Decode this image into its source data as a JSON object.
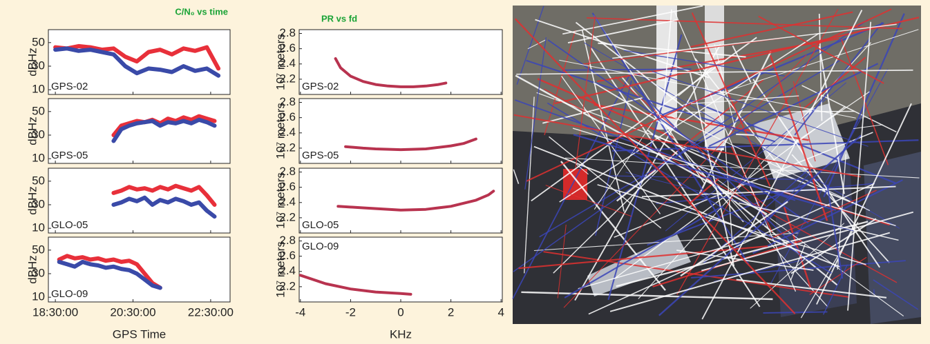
{
  "chart_data": [
    {
      "type": "line",
      "title": "C/N₀ vs time",
      "xlabel": "GPS Time",
      "ylabel": "dBHz",
      "xlim": [
        18.32,
        23.0
      ],
      "xticks": [
        {
          "value": 18.5,
          "label": "18:30:00"
        },
        {
          "value": 20.5,
          "label": "20:30:00"
        },
        {
          "value": 22.5,
          "label": "22:30:00"
        }
      ],
      "ylim": [
        6,
        61
      ],
      "yticks": [
        10,
        30,
        50
      ],
      "panels": [
        {
          "label": "GPS-02",
          "series": [
            {
              "color": "#e8303a",
              "x": [
                18.5,
                18.8,
                19.1,
                19.4,
                19.7,
                20.0,
                20.3,
                20.6,
                20.9,
                21.2,
                21.5,
                21.8,
                22.1,
                22.4,
                22.7
              ],
              "values": [
                46,
                45,
                47,
                46,
                44,
                45,
                38,
                34,
                42,
                44,
                40,
                45,
                43,
                46,
                28
              ]
            },
            {
              "color": "#3a4aa8",
              "x": [
                18.5,
                18.8,
                19.1,
                19.4,
                19.7,
                20.0,
                20.3,
                20.6,
                20.9,
                21.2,
                21.5,
                21.8,
                22.1,
                22.4,
                22.7
              ],
              "values": [
                44,
                45,
                43,
                44,
                42,
                40,
                30,
                24,
                28,
                27,
                25,
                30,
                26,
                28,
                22
              ]
            }
          ]
        },
        {
          "label": "GPS-05",
          "series": [
            {
              "color": "#e8303a",
              "x": [
                20.0,
                20.2,
                20.4,
                20.6,
                20.8,
                21.0,
                21.2,
                21.4,
                21.6,
                21.8,
                22.0,
                22.2,
                22.4,
                22.6
              ],
              "values": [
                30,
                38,
                40,
                42,
                41,
                43,
                40,
                44,
                42,
                45,
                43,
                46,
                44,
                42
              ]
            },
            {
              "color": "#3a4aa8",
              "x": [
                20.0,
                20.2,
                20.4,
                20.6,
                20.8,
                21.0,
                21.2,
                21.4,
                21.6,
                21.8,
                22.0,
                22.2,
                22.4,
                22.6
              ],
              "values": [
                25,
                35,
                38,
                40,
                41,
                42,
                38,
                41,
                40,
                42,
                40,
                43,
                41,
                38
              ]
            }
          ]
        },
        {
          "label": "GLO-05",
          "series": [
            {
              "color": "#e8303a",
              "x": [
                20.0,
                20.2,
                20.4,
                20.6,
                20.8,
                21.0,
                21.2,
                21.4,
                21.6,
                21.8,
                22.0,
                22.2,
                22.4,
                22.6
              ],
              "values": [
                40,
                42,
                45,
                43,
                44,
                42,
                45,
                43,
                46,
                44,
                42,
                45,
                38,
                30
              ]
            },
            {
              "color": "#3a4aa8",
              "x": [
                20.0,
                20.2,
                20.4,
                20.6,
                20.8,
                21.0,
                21.2,
                21.4,
                21.6,
                21.8,
                22.0,
                22.2,
                22.4,
                22.6
              ],
              "values": [
                30,
                32,
                35,
                33,
                36,
                30,
                34,
                32,
                35,
                33,
                30,
                32,
                25,
                20
              ]
            }
          ]
        },
        {
          "label": "GLO-09",
          "series": [
            {
              "color": "#e8303a",
              "x": [
                18.6,
                18.8,
                19.0,
                19.2,
                19.4,
                19.6,
                19.8,
                20.0,
                20.2,
                20.4,
                20.6,
                20.8,
                21.0,
                21.2
              ],
              "values": [
                42,
                45,
                43,
                44,
                42,
                43,
                41,
                42,
                40,
                41,
                38,
                30,
                22,
                18
              ]
            },
            {
              "color": "#3a4aa8",
              "x": [
                18.6,
                18.8,
                19.0,
                19.2,
                19.4,
                19.6,
                19.8,
                20.0,
                20.2,
                20.4,
                20.6,
                20.8,
                21.0,
                21.2
              ],
              "values": [
                40,
                38,
                36,
                40,
                38,
                37,
                35,
                36,
                34,
                33,
                30,
                25,
                20,
                18
              ]
            }
          ]
        }
      ]
    },
    {
      "type": "line",
      "title": "PR vs fd",
      "xlabel": "KHz",
      "ylabel": "10⁷ meters",
      "xlim": [
        -4.05,
        4.05
      ],
      "xticks": [
        -4,
        -2,
        0,
        2,
        4
      ],
      "ylim": [
        2.0,
        2.85
      ],
      "yticks": [
        2.2,
        2.4,
        2.6,
        2.8
      ],
      "panels": [
        {
          "label": "GPS-02",
          "series": [
            {
              "color": "#b8334f",
              "x": [
                -2.6,
                -2.4,
                -2,
                -1.5,
                -1,
                -0.5,
                0,
                0.5,
                1,
                1.5,
                1.8
              ],
              "values": [
                2.47,
                2.35,
                2.24,
                2.17,
                2.13,
                2.11,
                2.1,
                2.1,
                2.11,
                2.13,
                2.15
              ]
            }
          ]
        },
        {
          "label": "GPS-05",
          "series": [
            {
              "color": "#b8334f",
              "x": [
                -2.2,
                -1.5,
                -1,
                0,
                1,
                2,
                2.5,
                3
              ],
              "values": [
                2.22,
                2.2,
                2.19,
                2.18,
                2.19,
                2.23,
                2.26,
                2.32
              ]
            }
          ]
        },
        {
          "label": "GLO-05",
          "series": [
            {
              "color": "#b8334f",
              "x": [
                -2.5,
                -1.5,
                0,
                1,
                2,
                3,
                3.5,
                3.7
              ],
              "values": [
                2.35,
                2.33,
                2.3,
                2.31,
                2.35,
                2.43,
                2.5,
                2.55
              ]
            }
          ]
        },
        {
          "label": "GLO-09",
          "series": [
            {
              "color": "#b8334f",
              "x": [
                -4,
                -3,
                -2,
                -1,
                0,
                0.4
              ],
              "values": [
                2.35,
                2.24,
                2.17,
                2.13,
                2.11,
                2.1
              ]
            }
          ]
        }
      ]
    }
  ]
}
